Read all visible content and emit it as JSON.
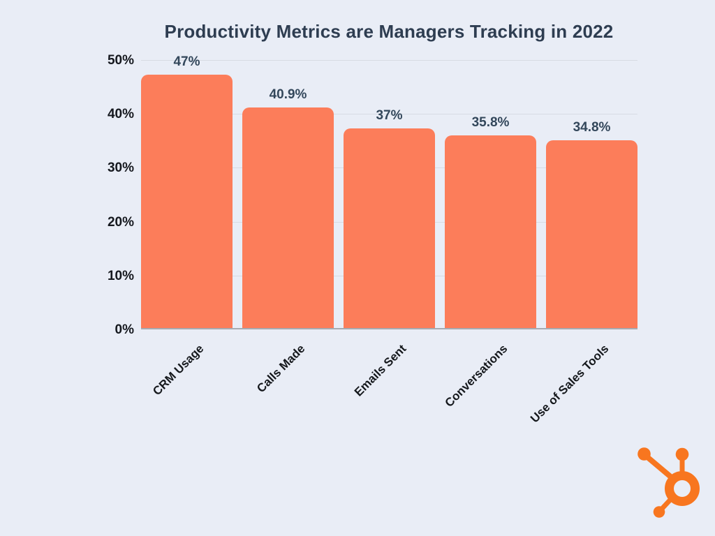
{
  "title": "Productivity Metrics are Managers Tracking in 2022",
  "chart_data": {
    "type": "bar",
    "title": "Productivity Metrics are Managers Tracking in 2022",
    "categories": [
      "CRM Usage",
      "Calls Made",
      "Emails Sent",
      "Conversations",
      "Use of Sales Tools"
    ],
    "values": [
      47,
      40.9,
      37,
      35.8,
      34.8
    ],
    "value_labels": [
      "47%",
      "40.9%",
      "37%",
      "35.8%",
      "34.8%"
    ],
    "xlabel": "",
    "ylabel": "",
    "ylim": [
      0,
      50
    ],
    "yticks": [
      {
        "value": 50,
        "label": "50%"
      },
      {
        "value": 40,
        "label": "40%"
      },
      {
        "value": 30,
        "label": "30%"
      },
      {
        "value": 20,
        "label": "20%"
      },
      {
        "value": 10,
        "label": "10%"
      },
      {
        "value": 0,
        "label": "0%"
      }
    ],
    "grid": true,
    "legend": false,
    "label_rotation_deg": -45
  },
  "colors": {
    "background": "#E9EDF6",
    "bar": "#FC7D5A",
    "title_text": "#2E3D51",
    "value_label_text": "#33475B",
    "tick_text": "#15181E",
    "gridline": "#D7DBE3",
    "axis_line": "#A7ABB2",
    "logo": "#F8761F"
  },
  "logo": {
    "name": "hubspot-sprocket"
  }
}
